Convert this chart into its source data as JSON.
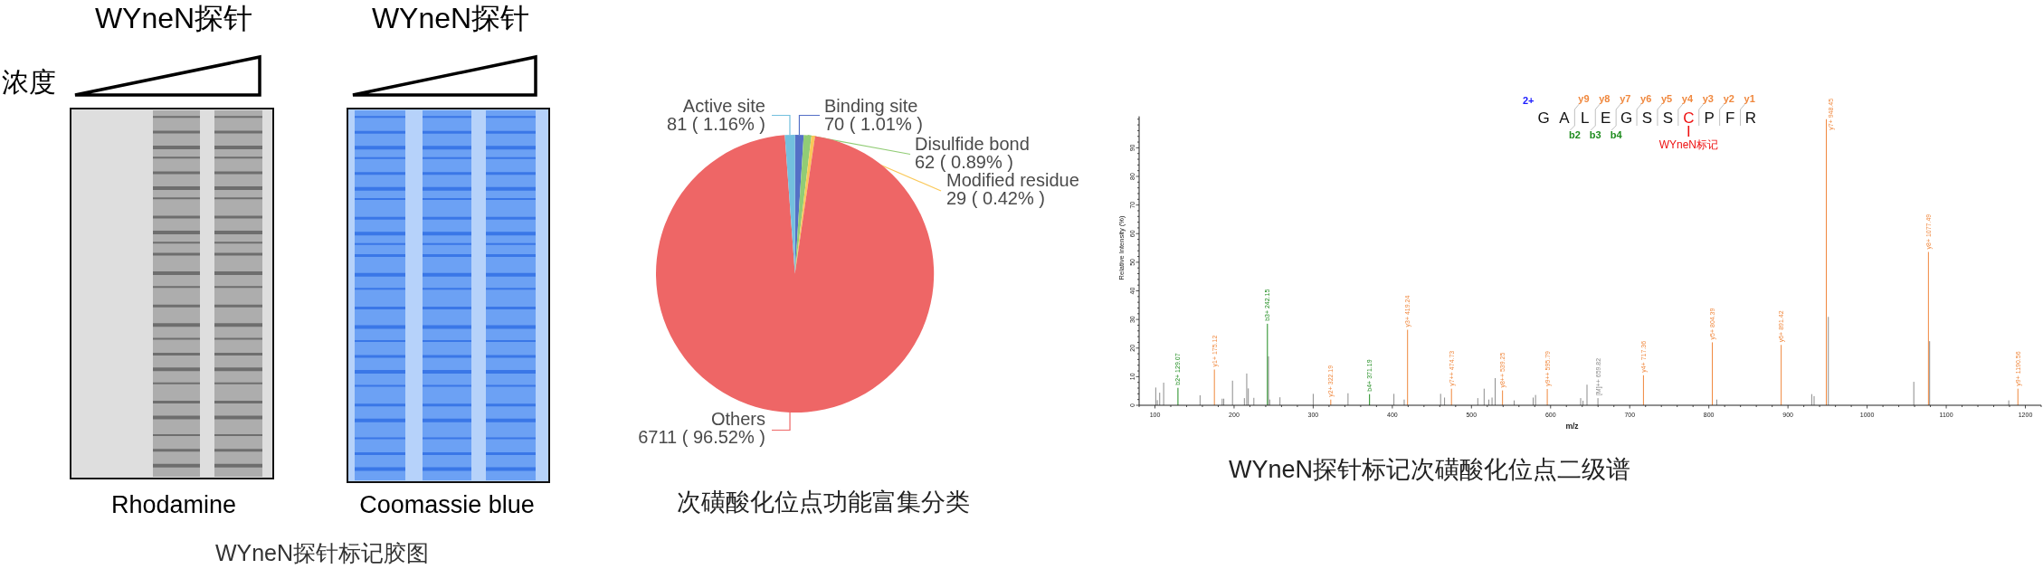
{
  "chart_data": [
    {
      "type": "other",
      "title": "WYneN探针标记胶图",
      "annotations": [
        "WYneN探针",
        "WYneN探针",
        "浓度",
        "Rhodamine",
        "Coomassie blue"
      ]
    },
    {
      "type": "pie",
      "title": "次磺酸化位点功能富集分类",
      "categories": [
        "Binding site",
        "Disulfide bond",
        "Modified residue",
        "Others",
        "Active site"
      ],
      "values": [
        70,
        62,
        29,
        6711,
        81
      ],
      "colors": [
        "#5470c6",
        "#91cc75",
        "#fac858",
        "#ee6666",
        "#73c0de"
      ],
      "value_labels": [
        "70 ( 1.01% )",
        "62 ( 0.89% )",
        "29 ( 0.42% )",
        "6711 ( 96.52% )",
        "81 ( 1.16% )"
      ]
    },
    {
      "type": "bar",
      "title": "WYneN探针标记次磺酸化位点二级谱",
      "xlabel": "m/z",
      "ylabel": "Relative Intensity (%)",
      "xlim": [
        80,
        1220
      ],
      "ylim": [
        0,
        101
      ],
      "xticks": [
        {
          "value": 80,
          "label": null
        },
        100,
        {
          "value": 120,
          "label": null
        },
        {
          "value": 140,
          "label": null
        },
        {
          "value": 160,
          "label": null
        },
        {
          "value": 180,
          "label": null
        },
        200,
        {
          "value": 220,
          "label": null
        },
        {
          "value": 240,
          "label": null
        },
        {
          "value": 260,
          "label": null
        },
        {
          "value": 280,
          "label": null
        },
        300,
        {
          "value": 320,
          "label": null
        },
        {
          "value": 340,
          "label": null
        },
        {
          "value": 360,
          "label": null
        },
        {
          "value": 380,
          "label": null
        },
        400,
        {
          "value": 420,
          "label": null
        },
        {
          "value": 440,
          "label": null
        },
        {
          "value": 460,
          "label": null
        },
        {
          "value": 480,
          "label": null
        },
        500,
        {
          "value": 520,
          "label": null
        },
        {
          "value": 540,
          "label": null
        },
        {
          "value": 560,
          "label": null
        },
        {
          "value": 580,
          "label": null
        },
        600,
        {
          "value": 620,
          "label": null
        },
        {
          "value": 640,
          "label": null
        },
        {
          "value": 660,
          "label": null
        },
        {
          "value": 680,
          "label": null
        },
        700,
        {
          "value": 720,
          "label": null
        },
        {
          "value": 740,
          "label": null
        },
        {
          "value": 760,
          "label": null
        },
        {
          "value": 780,
          "label": null
        },
        800,
        {
          "value": 820,
          "label": null
        },
        {
          "value": 840,
          "label": null
        },
        {
          "value": 860,
          "label": null
        },
        {
          "value": 880,
          "label": null
        },
        900,
        {
          "value": 920,
          "label": null
        },
        {
          "value": 940,
          "label": null
        },
        {
          "value": 960,
          "label": null
        },
        {
          "value": 980,
          "label": null
        },
        1000,
        {
          "value": 1020,
          "label": null
        },
        {
          "value": 1040,
          "label": null
        },
        {
          "value": 1060,
          "label": null
        },
        {
          "value": 1080,
          "label": null
        },
        1100,
        {
          "value": 1120,
          "label": null
        },
        {
          "value": 1140,
          "label": null
        },
        {
          "value": 1160,
          "label": null
        },
        {
          "value": 1180,
          "label": null
        },
        1200,
        {
          "value": 1220,
          "label": null
        }
      ],
      "yticks": [
        0,
        {
          "value": 2,
          "label": null
        },
        {
          "value": 4,
          "label": null
        },
        {
          "value": 6,
          "label": null
        },
        {
          "value": 8,
          "label": null
        },
        10,
        {
          "value": 12,
          "label": null
        },
        {
          "value": 14,
          "label": null
        },
        {
          "value": 16,
          "label": null
        },
        {
          "value": 18,
          "label": null
        },
        20,
        {
          "value": 22,
          "label": null
        },
        {
          "value": 24,
          "label": null
        },
        {
          "value": 26,
          "label": null
        },
        {
          "value": 28,
          "label": null
        },
        30,
        {
          "value": 32,
          "label": null
        },
        {
          "value": 34,
          "label": null
        },
        {
          "value": 36,
          "label": null
        },
        {
          "value": 38,
          "label": null
        },
        40,
        {
          "value": 42,
          "label": null
        },
        {
          "value": 44,
          "label": null
        },
        {
          "value": 46,
          "label": null
        },
        {
          "value": 48,
          "label": null
        },
        50,
        {
          "value": 52,
          "label": null
        },
        {
          "value": 54,
          "label": null
        },
        {
          "value": 56,
          "label": null
        },
        {
          "value": 58,
          "label": null
        },
        60,
        {
          "value": 62,
          "label": null
        },
        {
          "value": 64,
          "label": null
        },
        {
          "value": 66,
          "label": null
        },
        {
          "value": 68,
          "label": null
        },
        70,
        {
          "value": 72,
          "label": null
        },
        {
          "value": 74,
          "label": null
        },
        {
          "value": 76,
          "label": null
        },
        {
          "value": 78,
          "label": null
        },
        80,
        {
          "value": 82,
          "label": null
        },
        {
          "value": 84,
          "label": null
        },
        {
          "value": 86,
          "label": null
        },
        {
          "value": 88,
          "label": null
        },
        90,
        {
          "value": 92,
          "label": null
        },
        {
          "value": 94,
          "label": null
        },
        {
          "value": 96,
          "label": null
        },
        {
          "value": 98,
          "label": null
        },
        {
          "value": 100,
          "label": null
        }
      ],
      "series": [
        {
          "color": "#8c8c8c",
          "x": [
            101,
            103,
            106,
            111,
            157,
            185,
            187,
            198,
            213,
            216,
            218,
            225,
            243.5,
            245,
            258,
            300,
            344,
            402,
            415,
            461,
            466,
            508,
            516,
            522,
            526,
            530,
            554,
            578,
            581,
            638,
            641,
            646,
            659.82,
            810,
            930,
            933,
            951,
            1059,
            1079,
            1179
          ],
          "values": [
            6.2,
            1.8,
            4.4,
            7.9,
            3.5,
            2.3,
            2.3,
            8.6,
            2.5,
            11.1,
            5.9,
            2.6,
            17.1,
            2.0,
            2.8,
            4.0,
            4.2,
            4.0,
            2.0,
            4.0,
            2.7,
            2.5,
            5.8,
            2.0,
            2.7,
            9.5,
            1.7,
            2.7,
            3.6,
            2.5,
            1.6,
            7.2,
            2.5,
            2.0,
            3.9,
            3.2,
            30.9,
            8.2,
            22.4,
            1.7
          ]
        },
        {
          "color": "#f0883e",
          "x": [
            175.12,
            322.19,
            419.24,
            474.73,
            539.25,
            595.79,
            717.36,
            804.39,
            891.42,
            948.45,
            1077.49,
            1190.56
          ],
          "values": [
            12.5,
            2.0,
            26.4,
            5.8,
            5.2,
            5.7,
            10.5,
            22.0,
            21.1,
            100,
            53.6,
            5.8
          ]
        },
        {
          "color": "#1e8c1e",
          "x": [
            129.07,
            242.15,
            371.19
          ],
          "values": [
            6.1,
            28.5,
            3.9
          ]
        }
      ],
      "annotations": [
        "2+",
        "G A L E G S S C P F R",
        "y9",
        "y8",
        "y7",
        "y6",
        "y5",
        "y4",
        "y3",
        "y2",
        "y1",
        "b2",
        "b3",
        "b4",
        "WYneN标记",
        {
          "text": "b2+ 129.07",
          "x": 129.07,
          "y": 6.1
        },
        {
          "text": "y1+ 175.12",
          "x": 175.12,
          "y": 12.5
        },
        {
          "text": "b3+ 242.15",
          "x": 242.15,
          "y": 28.5
        },
        {
          "text": "y2+ 322.19",
          "x": 322.19,
          "y": 2.0
        },
        {
          "text": "b4+ 371.19",
          "x": 371.19,
          "y": 3.9
        },
        {
          "text": "y3+ 419.24",
          "x": 419.24,
          "y": 26.4
        },
        {
          "text": "y7++ 474.73",
          "x": 474.73,
          "y": 5.8
        },
        {
          "text": "y8++ 539.25",
          "x": 539.25,
          "y": 5.2
        },
        {
          "text": "y9++ 595.79",
          "x": 595.79,
          "y": 5.7
        },
        {
          "text": "[M]++ 659.82",
          "x": 659.82,
          "y": 2.5
        },
        {
          "text": "y4+ 717.36",
          "x": 717.36,
          "y": 10.5
        },
        {
          "text": "y5+ 804.39",
          "x": 804.39,
          "y": 22.0
        },
        {
          "text": "y6+ 891.42",
          "x": 891.42,
          "y": 21.1
        },
        {
          "text": "y7+ 948.45",
          "x": 948.45,
          "y": 100
        },
        {
          "text": "y8+ 1077.49",
          "x": 1077.49,
          "y": 53.6
        },
        {
          "text": "y9+ 1190.56",
          "x": 1190.56,
          "y": 5.8
        }
      ]
    }
  ]
}
